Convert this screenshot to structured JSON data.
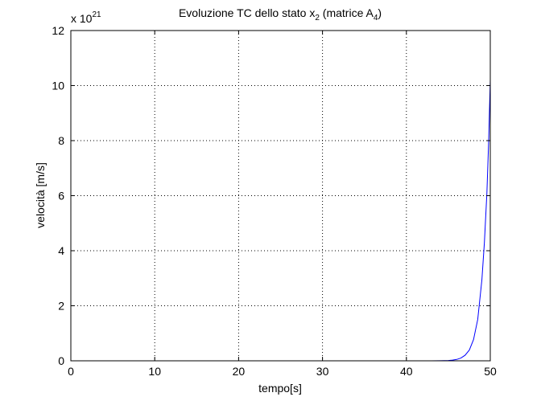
{
  "chart_data": {
    "type": "line",
    "title": {
      "main": "Evoluzione TC dello stato x",
      "sub": "2",
      "mid": " (matrice A",
      "sub2": "4",
      "end": ")"
    },
    "xlabel": "tempo[s]",
    "ylabel": "velocità [m/s]",
    "exponent_label": {
      "base": "x 10",
      "power": "21"
    },
    "xlim": [
      0,
      50
    ],
    "ylim": [
      0,
      12
    ],
    "xticks": [
      "0",
      "10",
      "20",
      "30",
      "40",
      "50"
    ],
    "yticks": [
      "0",
      "2",
      "4",
      "6",
      "8",
      "10",
      "12"
    ],
    "grid": true,
    "line_color": "#0000ff",
    "series": [
      {
        "x": [
          13,
          20,
          30,
          40,
          43,
          44,
          45,
          45.5,
          46,
          46.5,
          47,
          47.5,
          48,
          48.5,
          49,
          49.3,
          49.6,
          49.8,
          50
        ],
        "values": [
          0,
          0,
          0,
          0,
          0,
          0.002,
          0.012,
          0.025,
          0.05,
          0.1,
          0.2,
          0.39,
          0.77,
          1.5,
          2.95,
          4.3,
          6.1,
          7.9,
          10.2
        ]
      }
    ]
  }
}
